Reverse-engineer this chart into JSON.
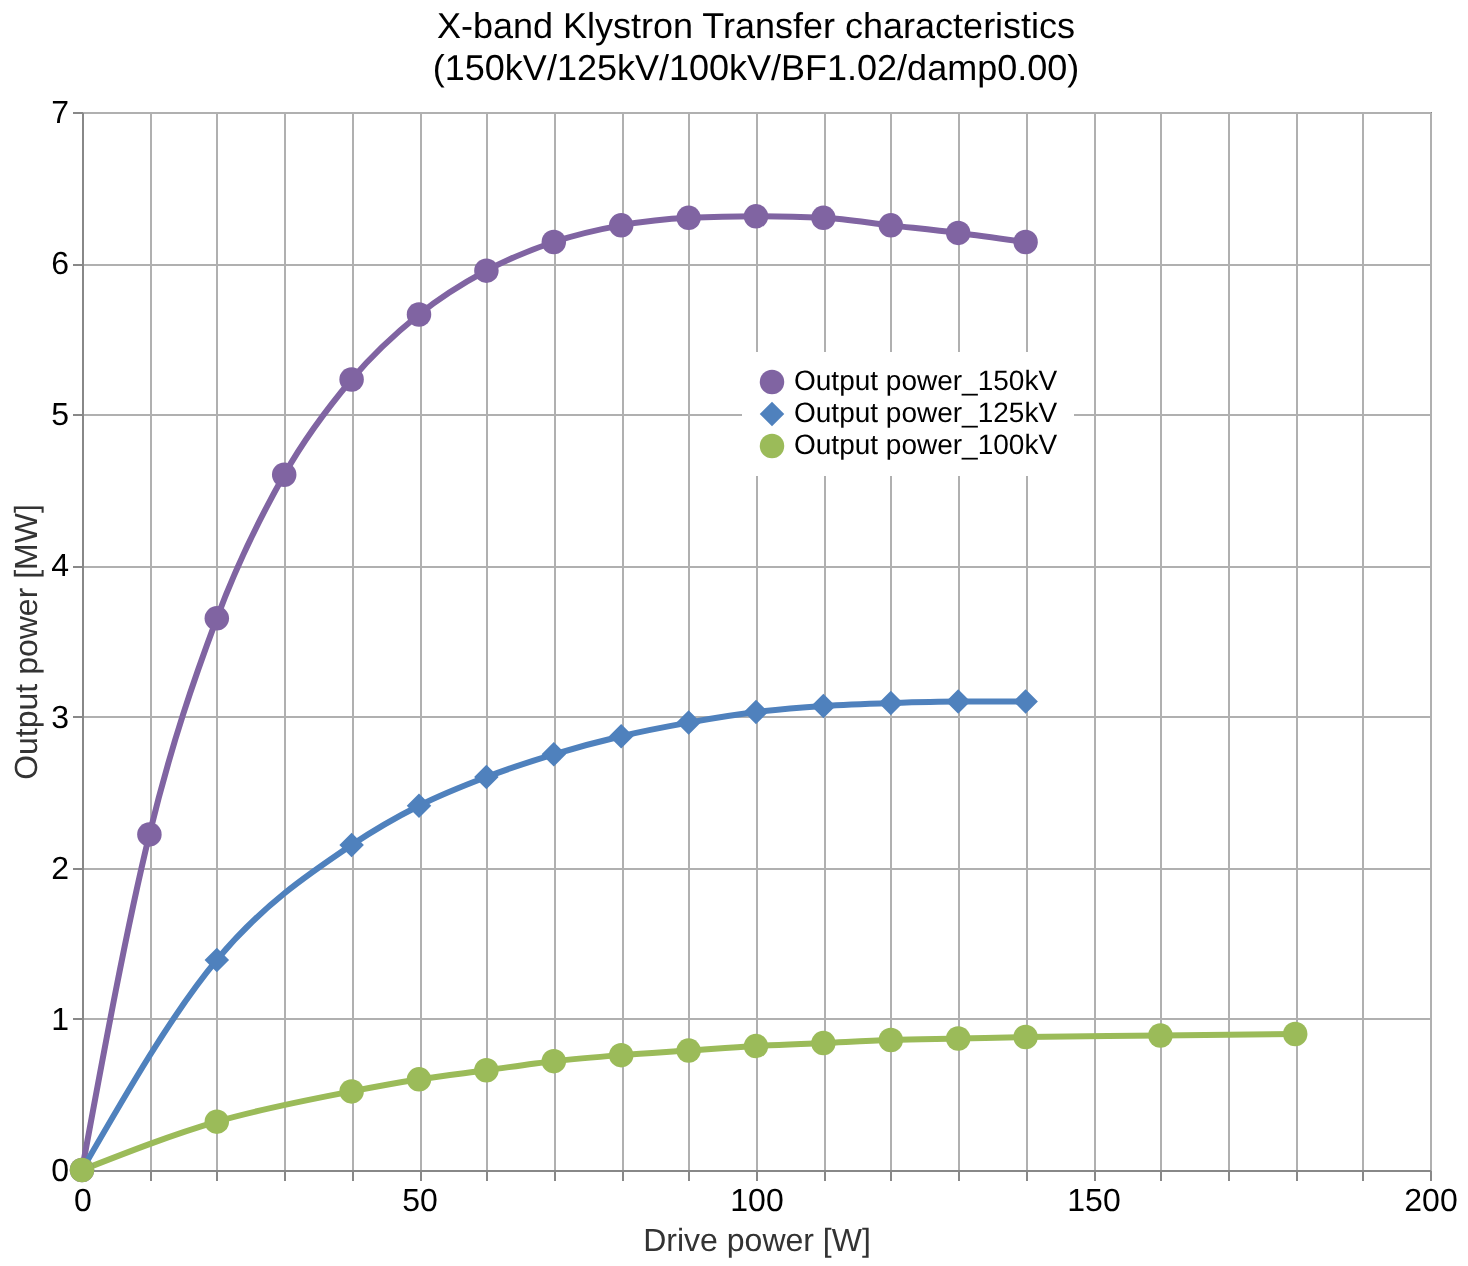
{
  "chart_data": {
    "type": "line",
    "title": "X-band Klystron Transfer characteristics",
    "subtitle": "(150kV/125kV/100kV/BF1.02/damp0.00)",
    "xlabel": "Drive power   [W]",
    "ylabel": "Output power [MW]",
    "series": [
      {
        "name": "Output power_150kV",
        "color": "#8064a2",
        "marker": "circle",
        "x": [
          0,
          10,
          20,
          30,
          40,
          50,
          60,
          70,
          80,
          90,
          100,
          110,
          120,
          130,
          140
        ],
        "values": [
          0,
          2.22,
          3.65,
          4.6,
          5.23,
          5.66,
          5.95,
          6.14,
          6.25,
          6.3,
          6.31,
          6.3,
          6.25,
          6.2,
          6.14
        ]
      },
      {
        "name": "Output power_125kV",
        "color": "#4f81bd",
        "marker": "diamond",
        "x": [
          0,
          20,
          40,
          50,
          60,
          70,
          80,
          90,
          100,
          110,
          120,
          130,
          140
        ],
        "values": [
          0,
          1.39,
          2.15,
          2.41,
          2.6,
          2.75,
          2.87,
          2.96,
          3.03,
          3.07,
          3.09,
          3.1,
          3.1
        ]
      },
      {
        "name": "Output power_100kV",
        "color": "#9bbb59",
        "marker": "circle",
        "x": [
          0,
          20,
          40,
          50,
          60,
          70,
          80,
          90,
          100,
          110,
          120,
          130,
          140,
          160,
          180
        ],
        "values": [
          0,
          0.32,
          0.52,
          0.6,
          0.66,
          0.72,
          0.76,
          0.79,
          0.82,
          0.84,
          0.86,
          0.87,
          0.88,
          0.89,
          0.9
        ]
      }
    ],
    "xlim": [
      0,
      200
    ],
    "xticks": [
      0,
      {
        "value": 10,
        "label": null
      },
      {
        "value": 20,
        "label": null
      },
      {
        "value": 30,
        "label": null
      },
      {
        "value": 40,
        "label": null
      },
      50,
      {
        "value": 60,
        "label": null
      },
      {
        "value": 70,
        "label": null
      },
      {
        "value": 80,
        "label": null
      },
      {
        "value": 90,
        "label": null
      },
      100,
      {
        "value": 110,
        "label": null
      },
      {
        "value": 120,
        "label": null
      },
      {
        "value": 130,
        "label": null
      },
      {
        "value": 140,
        "label": null
      },
      150,
      {
        "value": 160,
        "label": null
      },
      {
        "value": 170,
        "label": null
      },
      {
        "value": 180,
        "label": null
      },
      {
        "value": 190,
        "label": null
      },
      200
    ],
    "ylim": [
      0,
      7
    ],
    "yticks": [
      0,
      1,
      2,
      3,
      4,
      5,
      6,
      7
    ],
    "grid": true,
    "legend": "right",
    "line_style": "solid"
  }
}
